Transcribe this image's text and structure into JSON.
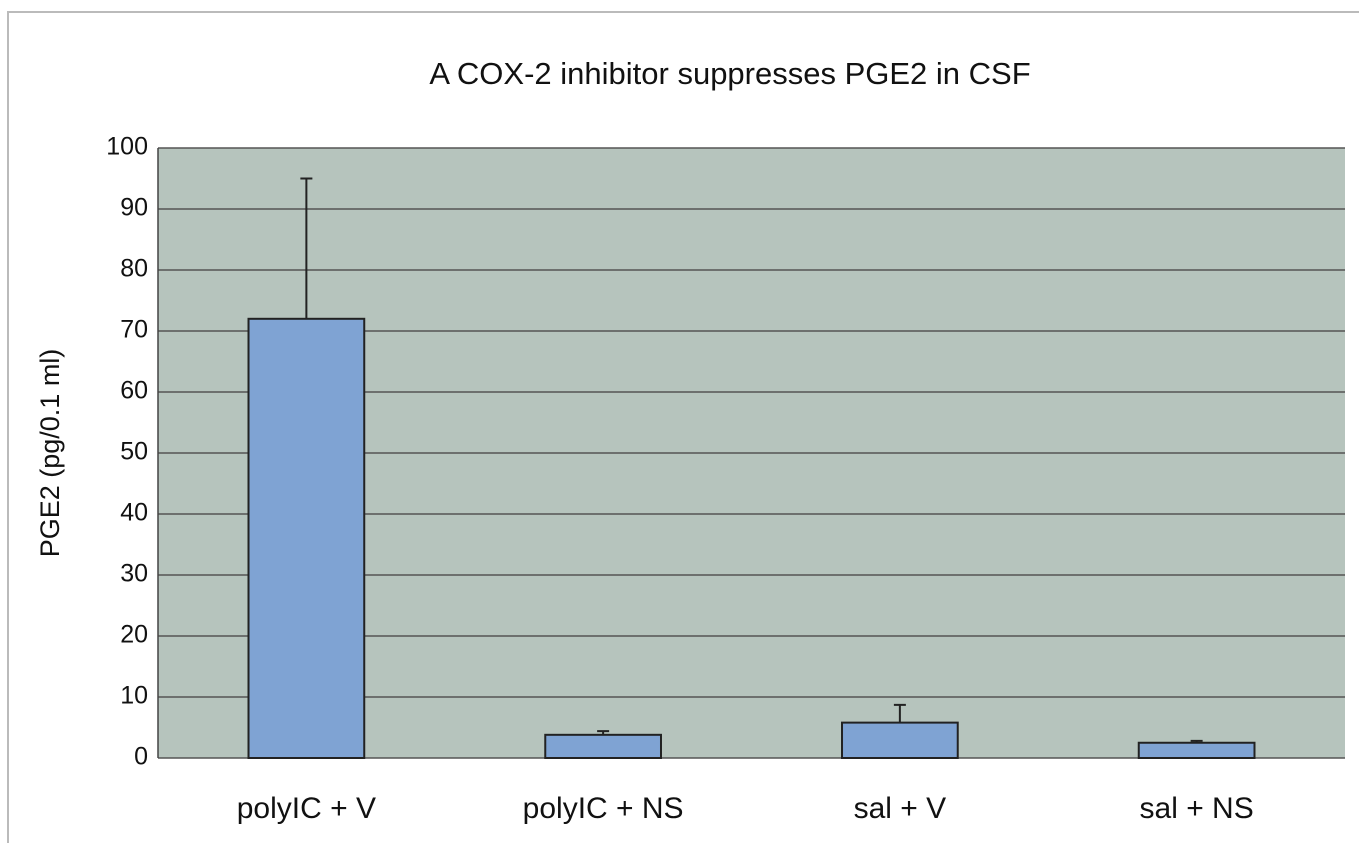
{
  "chart_data": {
    "type": "bar",
    "title": "A COX-2 inhibitor suppresses PGE2 in CSF",
    "ylabel": "PGE2 (pg/0.1 ml)",
    "categories": [
      "polyIC + V",
      "polyIC + NS",
      "sal + V",
      "sal + NS"
    ],
    "values": [
      72,
      3.8,
      5.8,
      2.5
    ],
    "errors": [
      23,
      0.6,
      2.9,
      0.3
    ],
    "color": "#7fa3d3",
    "ylim": [
      0,
      100
    ],
    "yticks": [
      0,
      10,
      20,
      30,
      40,
      50,
      60,
      70,
      80,
      90,
      100
    ],
    "grid": true
  }
}
